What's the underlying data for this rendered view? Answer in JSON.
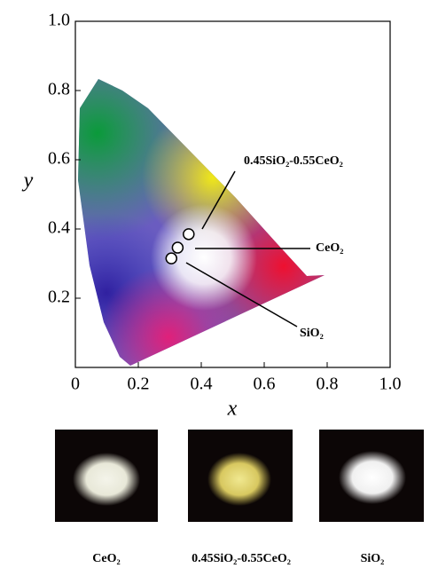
{
  "chart_data": {
    "type": "scatter",
    "xlabel": "x",
    "ylabel": "y",
    "xlim": [
      0,
      1
    ],
    "ylim": [
      0,
      1
    ],
    "xticks": [
      0,
      0.2,
      0.4,
      0.6,
      0.8,
      {
        "value": 1,
        "label": "1.0"
      }
    ],
    "yticks": [
      0.2,
      0.4,
      0.6,
      0.8,
      {
        "value": 1,
        "label": "1.0"
      }
    ],
    "series": [
      {
        "x": [
          0.36,
          0.325,
          0.305
        ],
        "values": [
          0.385,
          0.346,
          0.315
        ]
      }
    ],
    "annotations": [
      "0.45SiO₂-0.55CeO₂",
      "CeO₂",
      "SiO₂"
    ]
  },
  "photos": [
    {
      "caption": "CeO₂"
    },
    {
      "caption": "0.45SiO₂-0.55CeO₂"
    },
    {
      "caption": "SiO₂"
    }
  ]
}
